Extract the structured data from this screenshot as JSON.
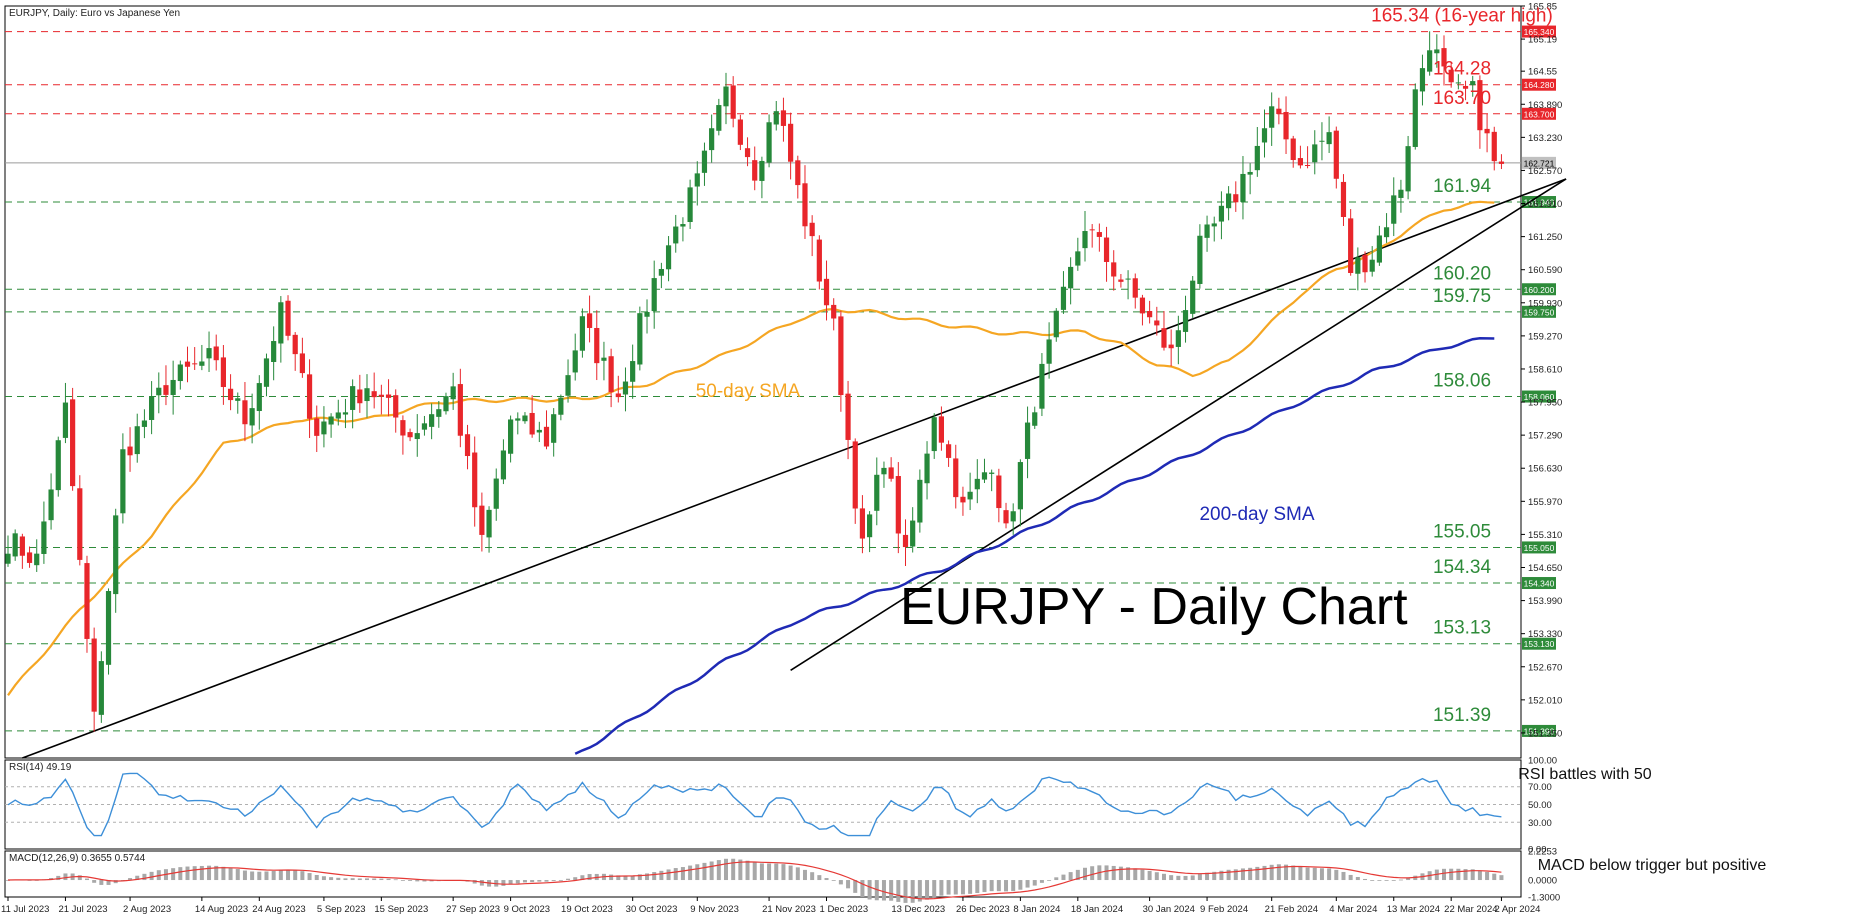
{
  "chart_data": {
    "type": "candlestick",
    "header": "EURJPY, Daily:  Euro vs Japanese Yen",
    "title": "EURJPY - Daily Chart",
    "ylim": [
      150.85,
      165.85
    ],
    "last_price": "162.721",
    "y_ticks": [
      "165.85",
      "165.19",
      "164.55",
      "163.890",
      "163.230",
      "162.570",
      "161.910",
      "161.250",
      "160.590",
      "159.930",
      "159.270",
      "158.610",
      "157.950",
      "157.290",
      "156.630",
      "155.970",
      "155.310",
      "154.650",
      "153.990",
      "153.330",
      "152.670",
      "152.010",
      "151.350"
    ],
    "x_ticks": [
      {
        "i": 0,
        "label": "11 Jul 2023"
      },
      {
        "i": 8,
        "label": "21 Jul 2023"
      },
      {
        "i": 17,
        "label": "2 Aug 2023"
      },
      {
        "i": 27,
        "label": "14 Aug 2023"
      },
      {
        "i": 35,
        "label": "24 Aug 2023"
      },
      {
        "i": 44,
        "label": "5 Sep 2023"
      },
      {
        "i": 52,
        "label": "15 Sep 2023"
      },
      {
        "i": 62,
        "label": "27 Sep 2023"
      },
      {
        "i": 70,
        "label": "9 Oct 2023"
      },
      {
        "i": 78,
        "label": "19 Oct 2023"
      },
      {
        "i": 87,
        "label": "30 Oct 2023"
      },
      {
        "i": 96,
        "label": "9 Nov 2023"
      },
      {
        "i": 106,
        "label": "21 Nov 2023"
      },
      {
        "i": 114,
        "label": "1 Dec 2023"
      },
      {
        "i": 124,
        "label": "13 Dec 2023"
      },
      {
        "i": 133,
        "label": "26 Dec 2023"
      },
      {
        "i": 141,
        "label": "8 Jan 2024"
      },
      {
        "i": 149,
        "label": "18 Jan 2024"
      },
      {
        "i": 159,
        "label": "30 Jan 2024"
      },
      {
        "i": 167,
        "label": "9 Feb 2024"
      },
      {
        "i": 176,
        "label": "21 Feb 2024"
      },
      {
        "i": 185,
        "label": "4 Mar 2024"
      },
      {
        "i": 193,
        "label": "13 Mar 2024"
      },
      {
        "i": 201,
        "label": "22 Mar 2024"
      },
      {
        "i": 208,
        "label": "2 Apr 2024"
      }
    ],
    "levels": [
      {
        "value": 165.34,
        "label": "165.34 (16-year high)",
        "tag": "165.340",
        "color": "#e8262b"
      },
      {
        "value": 164.28,
        "label": "164.28",
        "tag": "164.280",
        "color": "#e8262b"
      },
      {
        "value": 163.7,
        "label": "163.70",
        "tag": "163.700",
        "color": "#e8262b"
      },
      {
        "value": 161.94,
        "label": "161.94",
        "tag": "161.940",
        "color": "#2e8b3a"
      },
      {
        "value": 160.2,
        "label": "160.20",
        "tag": "160.200",
        "color": "#2e8b3a"
      },
      {
        "value": 159.75,
        "label": "159.75",
        "tag": "159.750",
        "color": "#2e8b3a"
      },
      {
        "value": 158.06,
        "label": "158.06",
        "tag": "158.060",
        "color": "#2e8b3a"
      },
      {
        "value": 155.05,
        "label": "155.05",
        "tag": "155.050",
        "color": "#2e8b3a"
      },
      {
        "value": 154.34,
        "label": "154.34",
        "tag": "154.340",
        "color": "#2e8b3a"
      },
      {
        "value": 153.13,
        "label": "153.13",
        "tag": "153.130",
        "color": "#2e8b3a"
      },
      {
        "value": 151.39,
        "label": "151.39",
        "tag": "151.390",
        "color": "#2e8b3a"
      }
    ],
    "anchors": [
      {
        "i": 0,
        "p": 155.2
      },
      {
        "i": 4,
        "p": 154.8
      },
      {
        "i": 8,
        "p": 157.8
      },
      {
        "i": 12,
        "p": 151.6
      },
      {
        "i": 16,
        "p": 156.9
      },
      {
        "i": 22,
        "p": 158.3
      },
      {
        "i": 28,
        "p": 158.8
      },
      {
        "i": 33,
        "p": 157.6
      },
      {
        "i": 38,
        "p": 159.7
      },
      {
        "i": 43,
        "p": 157.4
      },
      {
        "i": 50,
        "p": 158.3
      },
      {
        "i": 56,
        "p": 157.3
      },
      {
        "i": 62,
        "p": 158.2
      },
      {
        "i": 66,
        "p": 155.1
      },
      {
        "i": 70,
        "p": 157.6
      },
      {
        "i": 75,
        "p": 157.2
      },
      {
        "i": 80,
        "p": 159.5
      },
      {
        "i": 85,
        "p": 158.1
      },
      {
        "i": 91,
        "p": 160.8
      },
      {
        "i": 96,
        "p": 162.3
      },
      {
        "i": 100,
        "p": 164.1
      },
      {
        "i": 104,
        "p": 162.6
      },
      {
        "i": 107,
        "p": 163.9
      },
      {
        "i": 111,
        "p": 161.6
      },
      {
        "i": 115,
        "p": 159.4
      },
      {
        "i": 119,
        "p": 155.0
      },
      {
        "i": 122,
        "p": 156.9
      },
      {
        "i": 125,
        "p": 154.8
      },
      {
        "i": 129,
        "p": 157.8
      },
      {
        "i": 133,
        "p": 155.8
      },
      {
        "i": 137,
        "p": 156.8
      },
      {
        "i": 139,
        "p": 155.3
      },
      {
        "i": 143,
        "p": 158.0
      },
      {
        "i": 146,
        "p": 159.5
      },
      {
        "i": 150,
        "p": 161.5
      },
      {
        "i": 153,
        "p": 160.8
      },
      {
        "i": 158,
        "p": 159.8
      },
      {
        "i": 162,
        "p": 158.9
      },
      {
        "i": 166,
        "p": 161.0
      },
      {
        "i": 171,
        "p": 162.1
      },
      {
        "i": 176,
        "p": 163.7
      },
      {
        "i": 180,
        "p": 162.7
      },
      {
        "i": 184,
        "p": 163.3
      },
      {
        "i": 187,
        "p": 160.6
      },
      {
        "i": 190,
        "p": 160.9
      },
      {
        "i": 194,
        "p": 162.3
      },
      {
        "i": 196,
        "p": 164.1
      },
      {
        "i": 198,
        "p": 165.2
      },
      {
        "i": 201,
        "p": 164.1
      },
      {
        "i": 204,
        "p": 164.1
      },
      {
        "i": 207,
        "p": 162.7
      }
    ],
    "sma50_points": [
      [
        0,
        152.1
      ],
      [
        10,
        153.8
      ],
      [
        20,
        155.3
      ],
      [
        30,
        157.1
      ],
      [
        40,
        157.6
      ],
      [
        50,
        157.6
      ],
      [
        60,
        157.95
      ],
      [
        70,
        158.0
      ],
      [
        80,
        158.0
      ],
      [
        90,
        158.35
      ],
      [
        100,
        158.9
      ],
      [
        110,
        159.6
      ],
      [
        115,
        159.8
      ],
      [
        120,
        159.75
      ],
      [
        130,
        159.5
      ],
      [
        140,
        159.3
      ],
      [
        150,
        159.35
      ],
      [
        155,
        159.1
      ],
      [
        160,
        158.7
      ],
      [
        165,
        158.5
      ],
      [
        170,
        158.75
      ],
      [
        175,
        159.4
      ],
      [
        180,
        160.1
      ],
      [
        185,
        160.6
      ],
      [
        190,
        160.9
      ],
      [
        195,
        161.4
      ],
      [
        200,
        161.8
      ],
      [
        207,
        161.96
      ]
    ],
    "sma50_label": "50-day SMA",
    "sma200_points": [
      [
        79,
        150.9
      ],
      [
        90,
        151.9
      ],
      [
        100,
        152.8
      ],
      [
        110,
        153.6
      ],
      [
        120,
        154.1
      ],
      [
        130,
        154.6
      ],
      [
        140,
        155.25
      ],
      [
        150,
        155.95
      ],
      [
        160,
        156.6
      ],
      [
        170,
        157.25
      ],
      [
        180,
        157.95
      ],
      [
        190,
        158.55
      ],
      [
        200,
        159.05
      ],
      [
        207,
        159.25
      ]
    ],
    "sma200_label": "200-day SMA",
    "trendlines": [
      {
        "from": [
          2,
          150.85
        ],
        "to": [
          217,
          162.4
        ]
      },
      {
        "from": [
          109,
          152.6
        ],
        "to": [
          217,
          162.4
        ]
      }
    ],
    "rsi": {
      "header": "RSI(14) 49.19",
      "ylim": [
        0,
        100
      ],
      "ticks": [
        "100.00",
        "70.00",
        "50.00",
        "30.00",
        "0.00"
      ],
      "annotation": "RSI battles with 50"
    },
    "macd": {
      "header": "MACD(12,26,9) 0.3655 0.5744",
      "ylim": [
        -1.3,
        2.2253
      ],
      "ticks": [
        "2.2253",
        "0.0000",
        "-1.3000"
      ],
      "annotation": "MACD below trigger but positive"
    }
  },
  "colors": {
    "up": "#26883a",
    "down": "#e8262b",
    "sma50": "#f5a623",
    "sma200": "#1f2ab5",
    "rsi": "#3d8fd8",
    "macd_bar": "#a8a8a8",
    "signal": "#e53935"
  }
}
